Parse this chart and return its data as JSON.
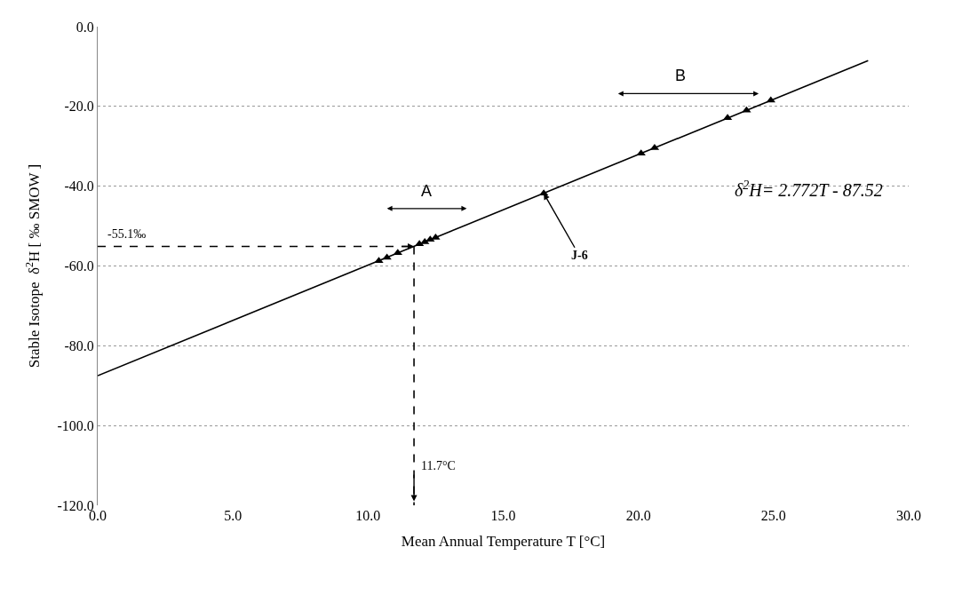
{
  "chart_data": {
    "type": "scatter",
    "xlabel": "Mean Annual Temperature T [°C]",
    "ylabel": "Stable Isotope  δ$^{2}$H [ ‰ SMOW ]",
    "series": [
      {
        "color": "#000000",
        "marker": "triangle",
        "x": [
          10.4,
          10.7,
          11.1,
          11.9,
          12.1,
          12.3,
          12.5,
          16.5,
          20.1,
          20.6,
          23.3,
          24.0,
          24.9
        ],
        "values": [
          -58.7,
          -57.9,
          -56.7,
          -54.5,
          -54.0,
          -53.4,
          -52.9,
          -41.8,
          -31.8,
          -30.4,
          -22.9,
          -21.0,
          -18.5
        ]
      },
      {
        "type": "line",
        "color": "#000000",
        "marker": "none",
        "line_style": "solid",
        "x": [
          0,
          28.5
        ],
        "values": [
          -87.5,
          -8.5
        ]
      }
    ],
    "annotations": [
      {
        "text": "J-6",
        "x": 16.5,
        "y": -41.8
      },
      "δ$^{2}$H= 2.772T - 87.52",
      "A",
      "B"
    ],
    "ref_lines": [
      {
        "axis": "y",
        "value": -55.1,
        "label": "-55.1‰",
        "color": "#000000",
        "line_style": "dashed"
      },
      {
        "axis": "x",
        "value": 11.7,
        "label": "11.7°C",
        "color": "#000000",
        "line_style": "dashed"
      }
    ],
    "xlim": [
      0,
      30
    ],
    "xticks": [
      {
        "value": 0,
        "label": "0.0"
      },
      {
        "value": 5,
        "label": "5.0"
      },
      {
        "value": 10,
        "label": "10.0"
      },
      {
        "value": 15,
        "label": "15.0"
      },
      {
        "value": 20,
        "label": "20.0"
      },
      {
        "value": 25,
        "label": "25.0"
      },
      {
        "value": 30,
        "label": "30.0"
      }
    ],
    "ylim": [
      -120,
      0
    ],
    "yticks": [
      {
        "value": -120,
        "label": "-120.0"
      },
      {
        "value": -100,
        "label": "-100.0"
      },
      {
        "value": -80,
        "label": "-80.0"
      },
      {
        "value": -60,
        "label": "-60.0"
      },
      {
        "value": -40,
        "label": "-40.0"
      },
      {
        "value": -20,
        "label": "-20.0"
      },
      {
        "value": 0,
        "label": "0.0"
      }
    ],
    "grid": "y"
  }
}
